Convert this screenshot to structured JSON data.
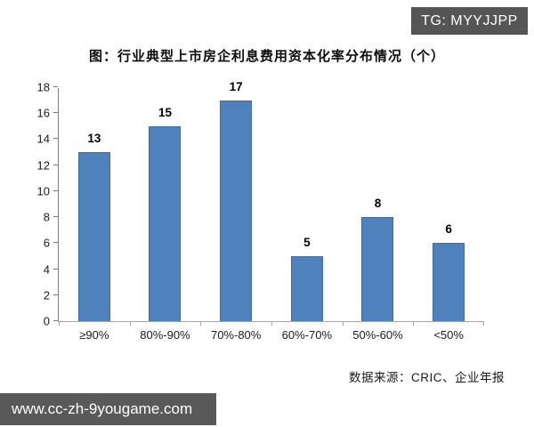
{
  "watermarks": {
    "top_right": "TG: MYYJJPP",
    "bottom_left": "www.cc-zh-9yougame.com"
  },
  "colors": {
    "bar_fill": "#4f81bd",
    "bar_edge": "#3f6da3",
    "watermark_badge_bg": "#555555",
    "url_badge_bg": "#595959",
    "axis_line": "#a6a6a6"
  },
  "chart_data": {
    "type": "bar",
    "title": "图：行业典型上市房企利息费用资本化率分布情况（个）",
    "categories": [
      "≥90%",
      "80%-90%",
      "70%-80%",
      "60%-70%",
      "50%-60%",
      "<50%"
    ],
    "values": [
      13,
      15,
      17,
      5,
      8,
      6
    ],
    "xlabel": "",
    "ylabel": "",
    "ylim": [
      0,
      18
    ],
    "ytick_step": 2,
    "grid": false,
    "legend": "none",
    "source": "数据来源：CRIC、企业年报"
  }
}
